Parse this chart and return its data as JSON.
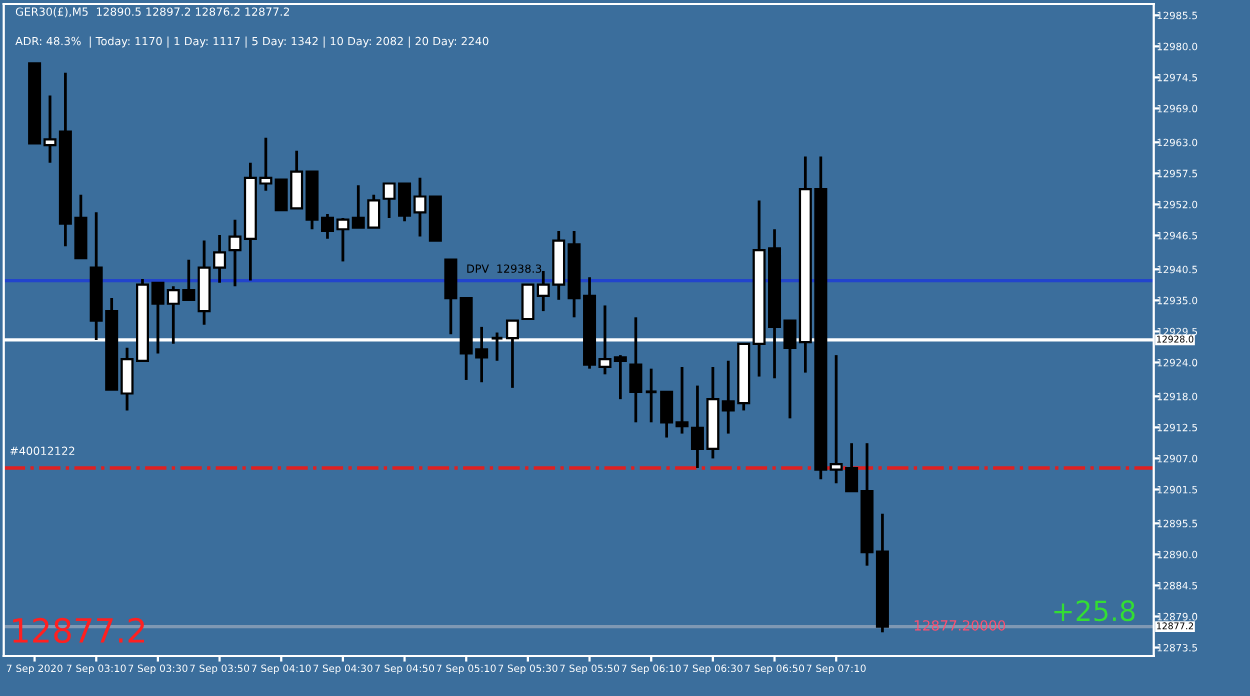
{
  "chart_data": {
    "type": "candlestick",
    "title": "GER30(£),M5  12890.5 12897.2 12876.2 12877.2",
    "subtitle": "ADR: 48.3%  | Today: 1170 | 1 Day: 1117 | 5 Day: 1342 | 10 Day: 2082 | 20 Day: 2240",
    "x": [
      "2020-09-07T02:50",
      "2020-09-07T02:55",
      "2020-09-07T03:00",
      "2020-09-07T03:05",
      "2020-09-07T03:10",
      "2020-09-07T03:15",
      "2020-09-07T03:20",
      "2020-09-07T03:25",
      "2020-09-07T03:30",
      "2020-09-07T03:35",
      "2020-09-07T03:40",
      "2020-09-07T03:45",
      "2020-09-07T03:50",
      "2020-09-07T03:55",
      "2020-09-07T04:00",
      "2020-09-07T04:05",
      "2020-09-07T04:10",
      "2020-09-07T04:15",
      "2020-09-07T04:20",
      "2020-09-07T04:25",
      "2020-09-07T04:30",
      "2020-09-07T04:35",
      "2020-09-07T04:40",
      "2020-09-07T04:45",
      "2020-09-07T04:50",
      "2020-09-07T04:55",
      "2020-09-07T05:00",
      "2020-09-07T05:05",
      "2020-09-07T05:10",
      "2020-09-07T05:15",
      "2020-09-07T05:20",
      "2020-09-07T05:25",
      "2020-09-07T05:30",
      "2020-09-07T05:35",
      "2020-09-07T05:40",
      "2020-09-07T05:45",
      "2020-09-07T05:50",
      "2020-09-07T05:55",
      "2020-09-07T06:00",
      "2020-09-07T06:05",
      "2020-09-07T06:10",
      "2020-09-07T06:15",
      "2020-09-07T06:20",
      "2020-09-07T06:25",
      "2020-09-07T06:30",
      "2020-09-07T06:35",
      "2020-09-07T06:40",
      "2020-09-07T06:45",
      "2020-09-07T06:50",
      "2020-09-07T06:55",
      "2020-09-07T07:00",
      "2020-09-07T07:05",
      "2020-09-07T07:10",
      "2020-09-07T07:15",
      "2020-09-07T07:20",
      "2020-09-07T07:25"
    ],
    "xlim": [
      "2020-09-07T02:40",
      "2020-09-07T08:53"
    ],
    "xticks": [
      {
        "value": "2020-09-07T02:50",
        "label": "7 Sep 2020"
      },
      {
        "value": "2020-09-07T03:10",
        "label": "7 Sep 03:10"
      },
      {
        "value": "2020-09-07T03:30",
        "label": "7 Sep 03:30"
      },
      {
        "value": "2020-09-07T03:50",
        "label": "7 Sep 03:50"
      },
      {
        "value": "2020-09-07T04:10",
        "label": "7 Sep 04:10"
      },
      {
        "value": "2020-09-07T04:30",
        "label": "7 Sep 04:30"
      },
      {
        "value": "2020-09-07T04:50",
        "label": "7 Sep 04:50"
      },
      {
        "value": "2020-09-07T05:10",
        "label": "7 Sep 05:10"
      },
      {
        "value": "2020-09-07T05:30",
        "label": "7 Sep 05:30"
      },
      {
        "value": "2020-09-07T05:50",
        "label": "7 Sep 05:50"
      },
      {
        "value": "2020-09-07T06:10",
        "label": "7 Sep 06:10"
      },
      {
        "value": "2020-09-07T06:30",
        "label": "7 Sep 06:30"
      },
      {
        "value": "2020-09-07T06:50",
        "label": "7 Sep 06:50"
      },
      {
        "value": "2020-09-07T07:10",
        "label": "7 Sep 07:10"
      }
    ],
    "ohlc": [
      [
        12977.0,
        12977.0,
        12962.8,
        12962.8
      ],
      [
        12962.5,
        12971.3,
        12959.4,
        12963.5
      ],
      [
        12964.9,
        12975.3,
        12944.6,
        12948.6
      ],
      [
        12949.6,
        12953.7,
        12942.5,
        12942.5
      ],
      [
        12940.8,
        12950.6,
        12928.0,
        12931.4
      ],
      [
        12933.1,
        12935.4,
        12919.2,
        12919.2
      ],
      [
        12918.5,
        12926.6,
        12915.5,
        12924.6
      ],
      [
        12924.3,
        12938.8,
        12924.3,
        12937.8
      ],
      [
        12938.1,
        12938.1,
        12925.6,
        12934.4
      ],
      [
        12934.4,
        12937.5,
        12927.3,
        12936.8
      ],
      [
        12936.8,
        12942.2,
        12935.1,
        12935.1
      ],
      [
        12933.1,
        12945.6,
        12930.7,
        12940.8
      ],
      [
        12940.8,
        12946.6,
        12938.1,
        12943.5
      ],
      [
        12943.9,
        12949.3,
        12937.5,
        12946.3
      ],
      [
        12945.9,
        12959.4,
        12938.5,
        12956.7
      ],
      [
        12955.7,
        12963.8,
        12954.4,
        12956.7
      ],
      [
        12956.4,
        12956.4,
        12951.0,
        12951.0
      ],
      [
        12951.3,
        12961.5,
        12951.3,
        12957.8
      ],
      [
        12957.8,
        12957.8,
        12947.6,
        12949.3
      ],
      [
        12949.6,
        12950.3,
        12945.9,
        12947.3
      ],
      [
        12947.6,
        12949.6,
        12941.9,
        12949.3
      ],
      [
        12949.6,
        12955.4,
        12947.9,
        12947.9
      ],
      [
        12947.9,
        12953.7,
        12947.9,
        12952.7
      ],
      [
        12953.0,
        12955.7,
        12949.6,
        12955.7
      ],
      [
        12955.7,
        12955.7,
        12949.0,
        12950.0
      ],
      [
        12950.6,
        12956.7,
        12946.3,
        12953.4
      ],
      [
        12953.4,
        12953.4,
        12945.6,
        12945.6
      ],
      [
        12942.2,
        12942.2,
        12929.0,
        12935.4
      ],
      [
        12935.4,
        12935.4,
        12920.9,
        12925.6
      ],
      [
        12926.3,
        12930.3,
        12920.5,
        12924.9
      ],
      [
        12928.3,
        12929.3,
        12924.3,
        12928.3
      ],
      [
        12928.3,
        12931.4,
        12919.5,
        12931.4
      ],
      [
        12931.7,
        12937.8,
        12931.7,
        12937.8
      ],
      [
        12935.8,
        12940.2,
        12933.1,
        12937.8
      ],
      [
        12937.8,
        12947.3,
        12935.1,
        12945.6
      ],
      [
        12944.9,
        12947.3,
        12932.0,
        12935.4
      ],
      [
        12935.8,
        12939.1,
        12922.9,
        12923.6
      ],
      [
        12923.2,
        12934.1,
        12921.9,
        12924.6
      ],
      [
        12924.9,
        12925.3,
        12917.5,
        12924.3
      ],
      [
        12923.6,
        12932.0,
        12913.4,
        12918.8
      ],
      [
        12918.8,
        12922.9,
        12913.4,
        12918.8
      ],
      [
        12918.8,
        12918.8,
        12910.7,
        12913.4
      ],
      [
        12913.4,
        12923.2,
        12911.4,
        12912.7
      ],
      [
        12912.4,
        12919.9,
        12905.3,
        12908.7
      ],
      [
        12908.7,
        12923.2,
        12907.0,
        12917.5
      ],
      [
        12917.1,
        12924.3,
        12911.4,
        12915.5
      ],
      [
        12916.8,
        12927.3,
        12915.5,
        12927.3
      ],
      [
        12927.3,
        12952.7,
        12921.5,
        12943.9
      ],
      [
        12944.2,
        12947.6,
        12921.2,
        12930.3
      ],
      [
        12931.4,
        12931.4,
        12914.1,
        12926.6
      ],
      [
        12927.6,
        12960.5,
        12922.2,
        12954.7
      ],
      [
        12954.7,
        12960.5,
        12903.3,
        12905.0
      ],
      [
        12905.0,
        12925.3,
        12902.6,
        12906.0
      ],
      [
        12905.3,
        12909.7,
        12901.2,
        12901.2
      ],
      [
        12901.2,
        12909.7,
        12888.0,
        12890.4
      ],
      [
        12890.5,
        12897.2,
        12876.2,
        12877.2
      ]
    ],
    "ylim": [
      12872.0,
      12987.5
    ],
    "yticks": [
      {
        "value": 12985.5,
        "label": "12985.5"
      },
      {
        "value": 12980,
        "label": "12980.0"
      },
      {
        "value": 12974.5,
        "label": "12974.5"
      },
      {
        "value": 12969,
        "label": "12969.0"
      },
      {
        "value": 12963,
        "label": "12963.0"
      },
      {
        "value": 12957.5,
        "label": "12957.5"
      },
      {
        "value": 12952,
        "label": "12952.0"
      },
      {
        "value": 12946.5,
        "label": "12946.5"
      },
      {
        "value": 12940.5,
        "label": "12940.5"
      },
      {
        "value": 12935,
        "label": "12935.0"
      },
      {
        "value": 12929.5,
        "label": "12929.5"
      },
      {
        "value": 12924,
        "label": "12924.0"
      },
      {
        "value": 12918,
        "label": "12918.0"
      },
      {
        "value": 12912.5,
        "label": "12912.5"
      },
      {
        "value": 12907,
        "label": "12907.0"
      },
      {
        "value": 12901.5,
        "label": "12901.5"
      },
      {
        "value": 12895.5,
        "label": "12895.5"
      },
      {
        "value": 12890,
        "label": "12890.0"
      },
      {
        "value": 12884.5,
        "label": "12884.5"
      },
      {
        "value": 12879,
        "label": "12879.0"
      },
      {
        "value": 12873.5,
        "label": "12873.5"
      }
    ],
    "ref_lines": [
      {
        "axis": "y",
        "value": 12938.5,
        "label": "DPV  12938.3",
        "color": "#2244cc",
        "line_style": "solid"
      },
      {
        "axis": "y",
        "value": 12928.0,
        "label": "12928.0",
        "color": "#ffffff",
        "line_style": "solid"
      },
      {
        "axis": "y",
        "value": 12905.3,
        "color": "#e02020",
        "line_style": "dashed"
      },
      {
        "axis": "y",
        "value": 12877.2,
        "label": "12877.2",
        "color": "#7f98b3",
        "line_style": "solid"
      }
    ],
    "annotations": [
      {
        "text": "12877.20000",
        "y": 12877.2
      },
      "+25.8",
      "12877.2",
      "#40012122"
    ],
    "grid": false,
    "legend": false
  }
}
